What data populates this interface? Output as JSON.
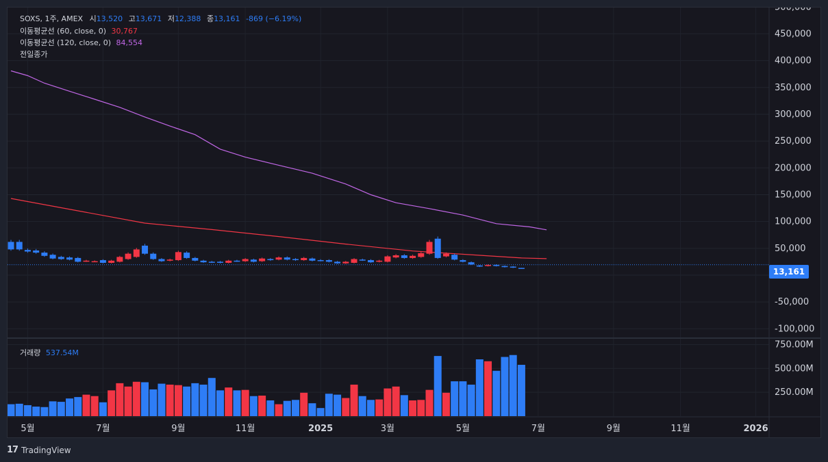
{
  "legend": {
    "symbol_line": "SOXS, 1주, AMEX",
    "open_label": "시",
    "open": "13,520",
    "high_label": "고",
    "high": "13,671",
    "low_label": "저",
    "low": "12,388",
    "close_label": "종",
    "close": "13,161",
    "change": "-869 (−6.19%)",
    "ma60_label": "이동평균선 (60, close, 0)",
    "ma60_value": "30,767",
    "ma120_label": "이동평균선 (120, close, 0)",
    "ma120_value": "84,554",
    "prev_close_label": "전일종가",
    "volume_label": "거래량",
    "volume_value": "537.54M"
  },
  "last_price_tag": "13,161",
  "brand": "TradingView",
  "colors": {
    "up": "#f23645",
    "down": "#2e7df6",
    "ma60": "#f23645",
    "ma120": "#c167e6",
    "background": "#17171f"
  },
  "chart_data": {
    "type": "candlestick",
    "price_axis": {
      "ticks": [
        500000,
        450000,
        400000,
        350000,
        300000,
        250000,
        200000,
        150000,
        100000,
        50000,
        0,
        -50000,
        -100000
      ],
      "tick_labels": [
        "500,000",
        "450,000",
        "400,000",
        "350,000",
        "300,000",
        "250,000",
        "200,000",
        "150,000",
        "100,000",
        "50,000",
        "0",
        "-50,000",
        "-100,000"
      ]
    },
    "volume_axis": {
      "ticks": [
        750,
        500,
        250
      ],
      "tick_labels": [
        "750.00M",
        "500.00M",
        "250.00M"
      ]
    },
    "x_axis": {
      "labels": [
        "5월",
        "7월",
        "9월",
        "11월",
        "2025",
        "3월",
        "5월",
        "7월",
        "9월",
        "11월",
        "2026"
      ],
      "label_index": [
        2,
        11,
        20,
        28,
        37,
        45,
        54,
        63,
        72,
        80,
        89
      ]
    },
    "candles": [
      {
        "o": 62000,
        "c": 48000,
        "v": 125
      },
      {
        "o": 62000,
        "c": 48000,
        "v": 130
      },
      {
        "o": 47000,
        "c": 44000,
        "v": 115
      },
      {
        "o": 46000,
        "c": 42000,
        "v": 100
      },
      {
        "o": 42000,
        "c": 36000,
        "v": 95
      },
      {
        "o": 38000,
        "c": 31000,
        "v": 155
      },
      {
        "o": 34000,
        "c": 30000,
        "v": 150
      },
      {
        "o": 33000,
        "c": 29000,
        "v": 185
      },
      {
        "o": 32000,
        "c": 25000,
        "v": 200
      },
      {
        "o": 26000,
        "c": 27000,
        "v": 225
      },
      {
        "o": 26000,
        "c": 26000,
        "v": 210
      },
      {
        "o": 28000,
        "c": 23000,
        "v": 145
      },
      {
        "o": 23000,
        "c": 27000,
        "v": 270
      },
      {
        "o": 25000,
        "c": 34000,
        "v": 345
      },
      {
        "o": 30000,
        "c": 40000,
        "v": 310
      },
      {
        "o": 34000,
        "c": 48000,
        "v": 360
      },
      {
        "o": 55000,
        "c": 40000,
        "v": 355
      },
      {
        "o": 40000,
        "c": 30000,
        "v": 280
      },
      {
        "o": 30000,
        "c": 26000,
        "v": 340
      },
      {
        "o": 27000,
        "c": 29000,
        "v": 330
      },
      {
        "o": 28000,
        "c": 43000,
        "v": 325
      },
      {
        "o": 42000,
        "c": 32000,
        "v": 310
      },
      {
        "o": 32000,
        "c": 27000,
        "v": 345
      },
      {
        "o": 27000,
        "c": 24000,
        "v": 330
      },
      {
        "o": 25000,
        "c": 24000,
        "v": 400
      },
      {
        "o": 25000,
        "c": 23000,
        "v": 270
      },
      {
        "o": 23000,
        "c": 27000,
        "v": 300
      },
      {
        "o": 27000,
        "c": 26000,
        "v": 270
      },
      {
        "o": 26000,
        "c": 30000,
        "v": 275
      },
      {
        "o": 29000,
        "c": 25000,
        "v": 210
      },
      {
        "o": 26000,
        "c": 31000,
        "v": 215
      },
      {
        "o": 30000,
        "c": 28000,
        "v": 165
      },
      {
        "o": 29000,
        "c": 33000,
        "v": 125
      },
      {
        "o": 33000,
        "c": 29000,
        "v": 160
      },
      {
        "o": 30000,
        "c": 28000,
        "v": 170
      },
      {
        "o": 28000,
        "c": 32000,
        "v": 245
      },
      {
        "o": 31000,
        "c": 27000,
        "v": 135
      },
      {
        "o": 28000,
        "c": 27000,
        "v": 85
      },
      {
        "o": 28000,
        "c": 25000,
        "v": 235
      },
      {
        "o": 25000,
        "c": 22000,
        "v": 225
      },
      {
        "o": 22000,
        "c": 25000,
        "v": 190
      },
      {
        "o": 23000,
        "c": 30000,
        "v": 330
      },
      {
        "o": 29000,
        "c": 28000,
        "v": 210
      },
      {
        "o": 28000,
        "c": 24000,
        "v": 170
      },
      {
        "o": 25000,
        "c": 27000,
        "v": 175
      },
      {
        "o": 25000,
        "c": 35000,
        "v": 290
      },
      {
        "o": 33000,
        "c": 37000,
        "v": 310
      },
      {
        "o": 37000,
        "c": 32000,
        "v": 220
      },
      {
        "o": 32000,
        "c": 36000,
        "v": 165
      },
      {
        "o": 34000,
        "c": 41000,
        "v": 170
      },
      {
        "o": 40000,
        "c": 62000,
        "v": 275
      },
      {
        "o": 68000,
        "c": 32000,
        "v": 630
      },
      {
        "o": 35000,
        "c": 40000,
        "v": 245
      },
      {
        "o": 38000,
        "c": 29000,
        "v": 365
      },
      {
        "o": 28000,
        "c": 25000,
        "v": 365
      },
      {
        "o": 24000,
        "c": 20000,
        "v": 330
      },
      {
        "o": 18000,
        "c": 16000,
        "v": 595
      },
      {
        "o": 17000,
        "c": 19000,
        "v": 575
      },
      {
        "o": 19000,
        "c": 17000,
        "v": 475
      },
      {
        "o": 17000,
        "c": 15000,
        "v": 620
      },
      {
        "o": 16000,
        "c": 14000,
        "v": 640
      },
      {
        "o": 13520,
        "c": 13161,
        "h": 13671,
        "l": 12388,
        "v": 537.54
      }
    ],
    "ma60": [
      [
        0,
        143000
      ],
      [
        8,
        120000
      ],
      [
        16,
        97000
      ],
      [
        24,
        85000
      ],
      [
        32,
        72000
      ],
      [
        40,
        58000
      ],
      [
        48,
        45000
      ],
      [
        56,
        37000
      ],
      [
        61,
        32000
      ],
      [
        64,
        30767
      ]
    ],
    "ma120": [
      [
        0,
        381000
      ],
      [
        2,
        372000
      ],
      [
        4,
        358000
      ],
      [
        7,
        343000
      ],
      [
        10,
        328000
      ],
      [
        13,
        313000
      ],
      [
        16,
        295000
      ],
      [
        19,
        278000
      ],
      [
        22,
        262000
      ],
      [
        25,
        235000
      ],
      [
        28,
        220000
      ],
      [
        32,
        205000
      ],
      [
        36,
        190000
      ],
      [
        40,
        170000
      ],
      [
        43,
        150000
      ],
      [
        46,
        135000
      ],
      [
        50,
        124000
      ],
      [
        54,
        112000
      ],
      [
        58,
        96000
      ],
      [
        62,
        90000
      ],
      [
        64,
        84554
      ]
    ]
  }
}
